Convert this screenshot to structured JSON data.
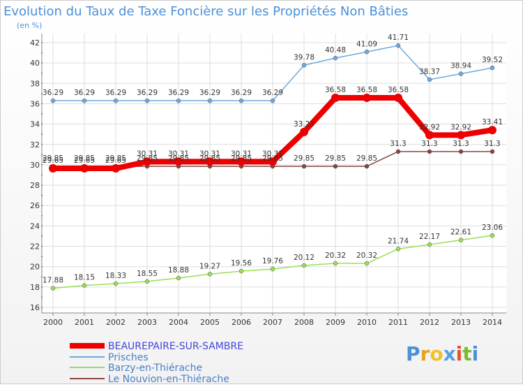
{
  "chart_data": {
    "type": "line",
    "title": "Evolution du Taux de Taxe Foncière sur les Propriétés Non Bâties",
    "ylabel": "(en %)",
    "xlabel": "",
    "ylim": [
      16,
      42
    ],
    "yticks": [
      16,
      18,
      20,
      22,
      24,
      26,
      28,
      30,
      32,
      34,
      36,
      38,
      40,
      42
    ],
    "categories": [
      "2000",
      "2001",
      "2002",
      "2003",
      "2004",
      "2005",
      "2006",
      "2007",
      "2008",
      "2009",
      "2010",
      "2011",
      "2012",
      "2013",
      "2014"
    ],
    "grid": true,
    "series": [
      {
        "name": "BEAUREPAIRE-SUR-SAMBRE",
        "color": "#ee0000",
        "legend_color": "#4444dd",
        "values": [
          29.65,
          29.65,
          29.65,
          30.31,
          30.31,
          30.31,
          30.31,
          30.31,
          33.23,
          36.58,
          36.58,
          36.58,
          32.92,
          32.92,
          33.41
        ],
        "labels": [
          "29.65",
          "29.65",
          "29.65",
          "30.31",
          "30.31",
          "30.31",
          "30.31",
          "30.31",
          "33.23",
          "36.58",
          "36.58",
          "36.58",
          "32.92",
          "32.92",
          "33.41"
        ]
      },
      {
        "name": "Prisches",
        "color": "#6fa8dc",
        "values": [
          36.29,
          36.29,
          36.29,
          36.29,
          36.29,
          36.29,
          36.29,
          36.29,
          39.78,
          40.48,
          41.09,
          41.71,
          38.37,
          38.94,
          39.52
        ],
        "labels": [
          "36.29",
          "36.29",
          "36.29",
          "36.29",
          "36.29",
          "36.29",
          "36.29",
          "36.29",
          "39.78",
          "40.48",
          "41.09",
          "41.71",
          "38.37",
          "38.94",
          "39.52"
        ]
      },
      {
        "name": "Barzy-en-Thiérache",
        "color": "#99dd55",
        "values": [
          17.88,
          18.15,
          18.33,
          18.55,
          18.88,
          19.27,
          19.56,
          19.76,
          20.12,
          20.32,
          20.32,
          21.74,
          22.17,
          22.61,
          23.06
        ],
        "labels": [
          "17.88",
          "18.15",
          "18.33",
          "18.55",
          "18.88",
          "19.27",
          "19.56",
          "19.76",
          "20.12",
          "20.32",
          "20.32",
          "21.74",
          "22.17",
          "22.61",
          "23.06"
        ]
      },
      {
        "name": "Le Nouvion-en-Thiérache",
        "color": "#884444",
        "values": [
          29.85,
          29.85,
          29.85,
          29.85,
          29.85,
          29.85,
          29.85,
          29.85,
          29.85,
          29.85,
          29.85,
          31.3,
          31.3,
          31.3,
          31.3
        ],
        "labels": [
          "29.85",
          "29.85",
          "29.85",
          "29.85",
          "29.85",
          "29.85",
          "29.85",
          "29.85",
          "29.85",
          "29.85",
          "29.85",
          "31.3",
          "31.3",
          "31.3",
          "31.3"
        ]
      }
    ]
  },
  "watermark": "Proxiti"
}
